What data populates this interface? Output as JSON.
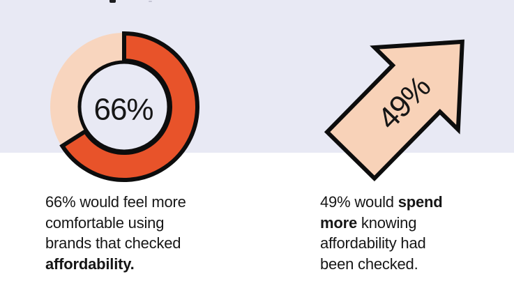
{
  "colors": {
    "lavender_background": "#E8E9F4",
    "white_background": "#FFFFFF",
    "outline_black": "#0D0D0D",
    "text_color": "#161616",
    "orange": "#E8532A",
    "peach_donut": "#F8D5BE",
    "peach_arrow": "#F8D2B8"
  },
  "captions": {
    "left": {
      "line1": "66% would feel more",
      "line2": "comfortable using",
      "line3": "brands that checked",
      "line4_bold": "affordability."
    },
    "right": {
      "line1_regular": "49% would ",
      "line1_bold": "spend",
      "line2_bold": "more",
      "line2_regular": " knowing",
      "line3": "affordability had",
      "line4": "been checked."
    }
  },
  "chart_data": [
    {
      "type": "pie",
      "subtype": "donut",
      "labels": [
        "would feel more comfortable using brands that checked affordability",
        "remainder"
      ],
      "values": [
        66,
        34
      ],
      "colors": [
        "#E8532A",
        "#F8D5BE"
      ],
      "center_label": "66%",
      "inner_fill": "#E8E9F4",
      "outline_color": "#0D0D0D",
      "start_angle": "12 o'clock",
      "direction": "clockwise",
      "annotation": "66% would feel more comfortable using brands that checked affordability."
    },
    {
      "type": "other",
      "subtype": "up-right-arrow",
      "labels": [
        "49%"
      ],
      "values": [
        49
      ],
      "fill": "#F8D2B8",
      "outline_color": "#0D0D0D",
      "annotation": "49% would spend more knowing affordability had been checked."
    }
  ]
}
